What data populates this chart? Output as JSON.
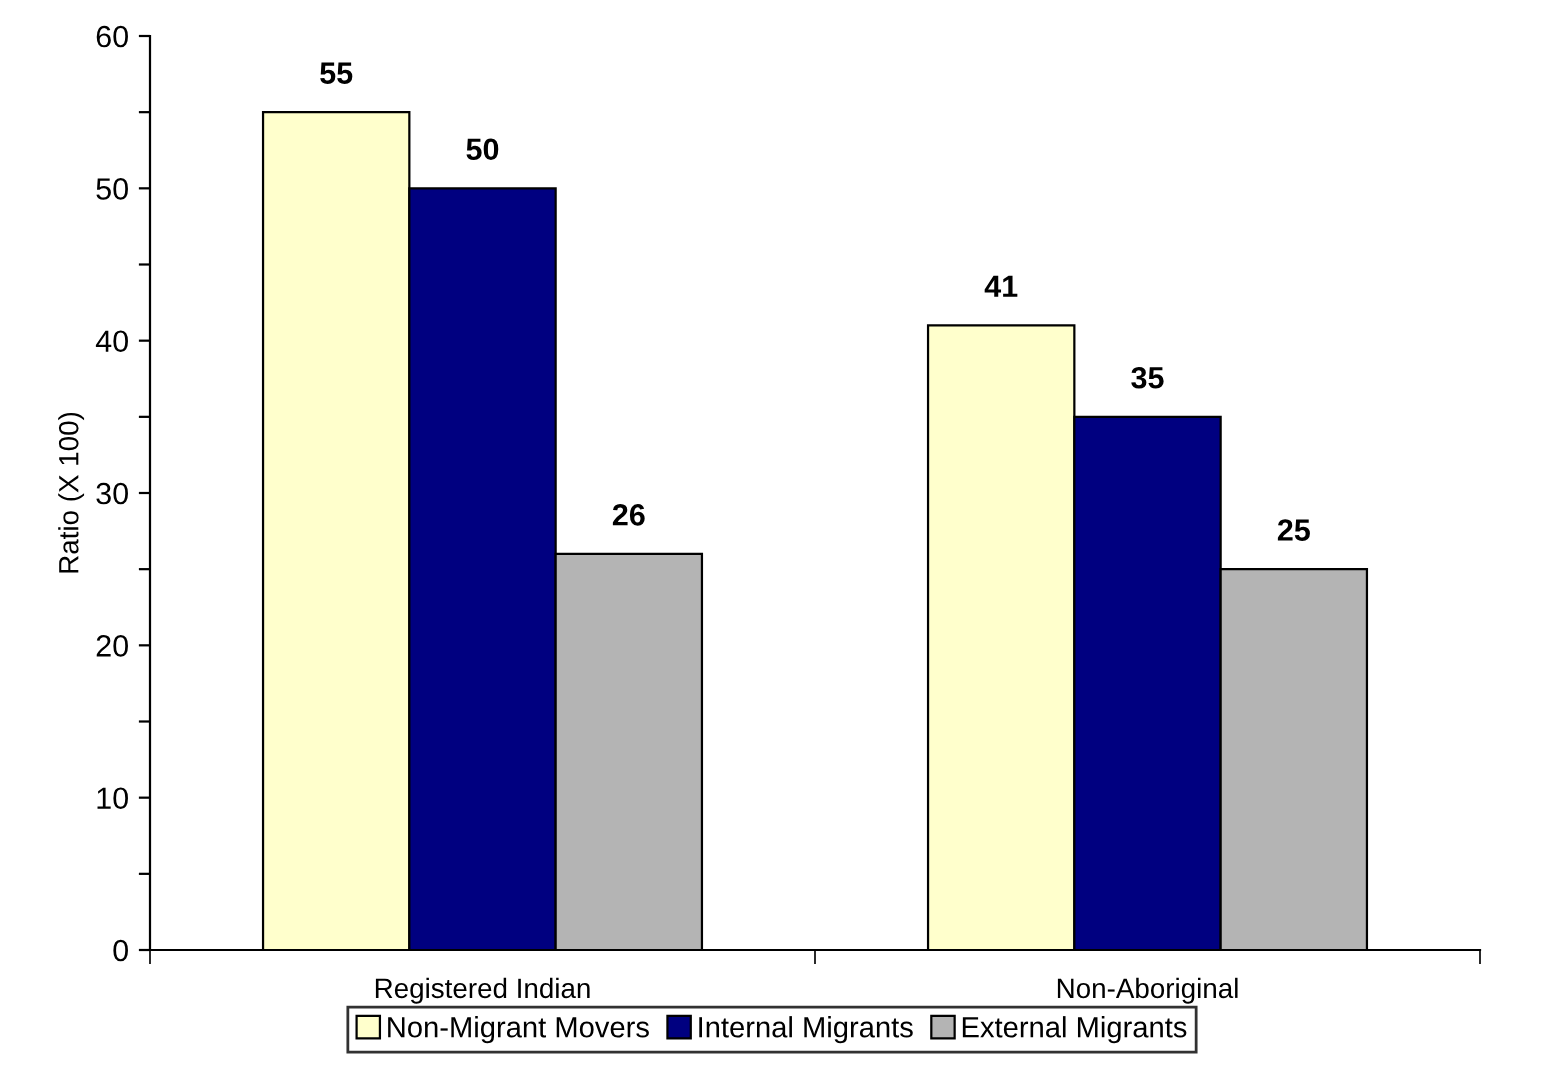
{
  "chart_data": {
    "type": "bar",
    "ylabel": "Ratio (X 100)",
    "categories": [
      "Registered Indian",
      "Non-Aboriginal"
    ],
    "series": [
      {
        "name": "Non-Migrant Movers",
        "color": "#ffffcc",
        "values": [
          55,
          41
        ]
      },
      {
        "name": "Internal Migrants",
        "color": "#000080",
        "values": [
          50,
          35
        ]
      },
      {
        "name": "External Migrants",
        "color": "#b4b4b4",
        "values": [
          26,
          25
        ]
      }
    ],
    "ylim": [
      0,
      60
    ],
    "yticks": [
      0,
      {
        "value": 5,
        "label": null
      },
      10,
      {
        "value": 15,
        "label": null
      },
      20,
      {
        "value": 25,
        "label": null
      },
      30,
      {
        "value": 35,
        "label": null
      },
      40,
      {
        "value": 45,
        "label": null
      },
      50,
      {
        "value": 55,
        "label": null
      },
      60
    ],
    "data_labels": true,
    "grid": false,
    "legend": "bottom"
  }
}
